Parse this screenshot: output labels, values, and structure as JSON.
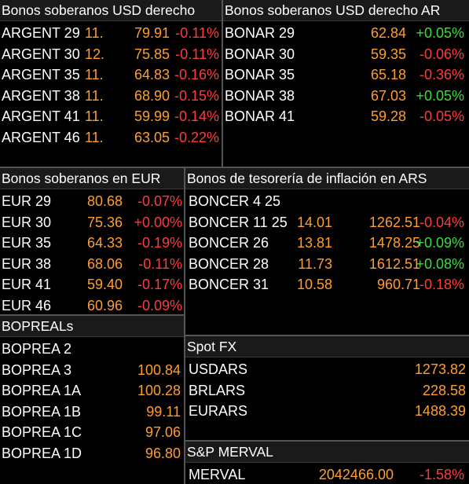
{
  "usd_legal": {
    "title": "Bonos soberanos USD derecho",
    "rows": [
      {
        "name": "ARGENT 29",
        "date": "11.",
        "price": "79.91",
        "change": "-0.11%"
      },
      {
        "name": "ARGENT 30",
        "date": "12.",
        "price": "75.85",
        "change": "-0.11%"
      },
      {
        "name": "ARGENT 35",
        "date": "11.",
        "price": "64.83",
        "change": "-0.16%"
      },
      {
        "name": "ARGENT 38",
        "date": "11.",
        "price": "68.90",
        "change": "-0.15%"
      },
      {
        "name": "ARGENT 41",
        "date": "11.",
        "price": "59.99",
        "change": "-0.14%"
      },
      {
        "name": "ARGENT 46",
        "date": "11.",
        "price": "63.05",
        "change": "-0.22%"
      }
    ]
  },
  "usd_ar": {
    "title": "Bonos soberanos USD derecho AR",
    "rows": [
      {
        "name": "BONAR 29",
        "price": "62.84",
        "change": "+0.05%",
        "dir": "up"
      },
      {
        "name": "BONAR 30",
        "price": "59.35",
        "change": "-0.06%",
        "dir": "down"
      },
      {
        "name": "BONAR 35",
        "price": "65.18",
        "change": "-0.36%",
        "dir": "down"
      },
      {
        "name": "BONAR 38",
        "price": "67.03",
        "change": "+0.05%",
        "dir": "up"
      },
      {
        "name": "BONAR 41",
        "price": "59.28",
        "change": "-0.05%",
        "dir": "down"
      }
    ]
  },
  "eur": {
    "title": "Bonos soberanos en EUR",
    "rows": [
      {
        "name": "EUR 29",
        "price": "80.68",
        "change": "-0.07%",
        "dir": "down"
      },
      {
        "name": "EUR 30",
        "price": "75.36",
        "change": "+0.00%",
        "dir": "down"
      },
      {
        "name": "EUR 35",
        "price": "64.33",
        "change": "-0.19%",
        "dir": "down"
      },
      {
        "name": "EUR 38",
        "price": "68.06",
        "change": "-0.11%",
        "dir": "down"
      },
      {
        "name": "EUR 41",
        "price": "59.40",
        "change": "-0.17%",
        "dir": "down"
      },
      {
        "name": "EUR 46",
        "price": "60.96",
        "change": "-0.09%",
        "dir": "down"
      }
    ]
  },
  "inflation": {
    "title": "Bonos de tesorería de inflación en ARS",
    "rows": [
      {
        "name": "BONCER 4 25",
        "yield": "",
        "price": "",
        "change": "",
        "dir": ""
      },
      {
        "name": "BONCER 11 25",
        "yield": "14.01",
        "price": "1262.51",
        "change": "-0.04%",
        "dir": "down"
      },
      {
        "name": "BONCER 26",
        "yield": "13.81",
        "price": "1478.25",
        "change": "+0.09%",
        "dir": "up"
      },
      {
        "name": "BONCER 28",
        "yield": "11.73",
        "price": "1612.51",
        "change": "+0.08%",
        "dir": "up"
      },
      {
        "name": "BONCER 31",
        "yield": "10.58",
        "price": "960.71",
        "change": "-0.18%",
        "dir": "down"
      }
    ]
  },
  "bopreal": {
    "title": "BOPREALs",
    "rows": [
      {
        "name": "BOPREA 2",
        "price": ""
      },
      {
        "name": "BOPREA 3",
        "price": "100.84"
      },
      {
        "name": "BOPREA 1A",
        "price": "100.28"
      },
      {
        "name": "BOPREA 1B",
        "price": "99.11"
      },
      {
        "name": "BOPREA 1C",
        "price": "97.06"
      },
      {
        "name": "BOPREA 1D",
        "price": "96.80"
      }
    ]
  },
  "spot_fx": {
    "title": "Spot FX",
    "rows": [
      {
        "name": "USDARS",
        "price": "1273.82"
      },
      {
        "name": "BRLARS",
        "price": "228.58"
      },
      {
        "name": "EURARS",
        "price": "1488.39"
      }
    ]
  },
  "merval": {
    "title": "S&P MERVAL",
    "rows": [
      {
        "name": "MERVAL",
        "price": "2042466.00",
        "change": "-1.58%",
        "dir": "down"
      }
    ]
  },
  "colors": {
    "value": "#ff9d2e",
    "negative": "#ff3b3b",
    "positive": "#3cdc3c",
    "header_bg": "#1a1a1a",
    "divider": "#555555"
  }
}
